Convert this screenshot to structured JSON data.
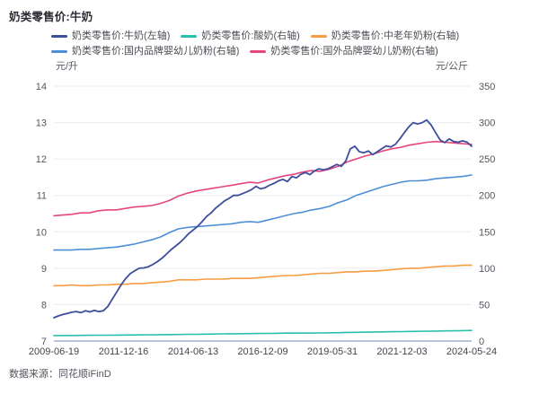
{
  "window": {
    "title": "奶类零售价:牛奶",
    "source_note": "数据来源：同花顺iFinD"
  },
  "colors": {
    "milk_line": "#3C4E9C",
    "yogurt_line": "#29BFAD",
    "senior_powder_line": "#F79C42",
    "domestic_infant_line": "#4D8FD6",
    "foreign_infant_line": "#E5467F",
    "gridline": "#e9ebf2",
    "axis_line": "#bcc6da",
    "background": "#ffffff"
  },
  "chart_data": {
    "type": "line",
    "title": "奶类零售价:牛奶",
    "grid": true,
    "legend_position": "top",
    "x_tick_labels": [
      "2009-06-19",
      "2011-12-16",
      "2014-06-13",
      "2016-12-09",
      "2019-05-31",
      "2021-12-03",
      "2024-05-24"
    ],
    "left_axis": {
      "unit": "元/升",
      "min": 7,
      "max": 14,
      "ticks": [
        14,
        13,
        12,
        11,
        10,
        9,
        8,
        7
      ]
    },
    "right_axis": {
      "unit": "元/公斤",
      "min": 0,
      "max": 350,
      "ticks": [
        350,
        300,
        250,
        200,
        150,
        100,
        50,
        0
      ]
    },
    "legend_rows": [
      [
        4,
        0,
        1
      ],
      [
        2,
        3
      ]
    ],
    "series": [
      {
        "name": "奶类零售价:酸奶(右轴)",
        "axis": "right",
        "color": "#29BFAD",
        "values": [
          7.5,
          7.6,
          7.7,
          7.8,
          7.9,
          8,
          8,
          8.1,
          8.2,
          8.4,
          8.5,
          8.6,
          8.7,
          8.9,
          9,
          9.2,
          9.3,
          9.5,
          9.6,
          9.8,
          10,
          10.1,
          10.2,
          10.4,
          10.5,
          10.6,
          10.8,
          10.9,
          11,
          11,
          11.1,
          11.3,
          11.5,
          11.8,
          12,
          12.2,
          12.4,
          12.6,
          12.8,
          13,
          13.2,
          13.3,
          13.5,
          13.7,
          13.9,
          14.1,
          14.3,
          14.5
        ]
      },
      {
        "name": "奶类零售价:中老年奶粉(右轴)",
        "axis": "right",
        "color": "#F79C42",
        "values": [
          76,
          76,
          77,
          76,
          76,
          77,
          77,
          78,
          78,
          79,
          79,
          80,
          81,
          82,
          84,
          84,
          84,
          85,
          85,
          85,
          86,
          86,
          86,
          87,
          88,
          89,
          90,
          90,
          91,
          92,
          93,
          93,
          94,
          95,
          95,
          96,
          96,
          97,
          98,
          99,
          100,
          100,
          101,
          102,
          103,
          103,
          104,
          104
        ]
      },
      {
        "name": "奶类零售价:国内品牌婴幼儿奶粉(右轴)",
        "axis": "right",
        "color": "#4D8FD6",
        "values": [
          125,
          125,
          125,
          126,
          126,
          127,
          128,
          129,
          131,
          133,
          136,
          139,
          143,
          149,
          154,
          156,
          157,
          158,
          159,
          160,
          161,
          163,
          164,
          163,
          166,
          169,
          172,
          175,
          177,
          180,
          182,
          185,
          190,
          194,
          200,
          204,
          208,
          212,
          215,
          218,
          220,
          220,
          221,
          223,
          224,
          225,
          226,
          228
        ]
      },
      {
        "name": "奶类零售价:国外品牌婴幼儿奶粉(右轴)",
        "axis": "right",
        "color": "#E5467F",
        "values": [
          172,
          173,
          174,
          176,
          176,
          179,
          180,
          180,
          182,
          184,
          185,
          186,
          189,
          193,
          199,
          203,
          206,
          208,
          210,
          212,
          214,
          216,
          218,
          217,
          221,
          224,
          227,
          229,
          232,
          234,
          233,
          236,
          240,
          246,
          250,
          254,
          257,
          261,
          264,
          266,
          269,
          271,
          273,
          274,
          273,
          272,
          271,
          270
        ]
      },
      {
        "name": "奶类零售价:牛奶(左轴)",
        "axis": "left",
        "color": "#3C4E9C",
        "values": [
          7.64,
          7.69,
          7.73,
          7.76,
          7.79,
          7.81,
          7.78,
          7.83,
          7.8,
          7.84,
          7.81,
          7.83,
          7.95,
          8.15,
          8.35,
          8.55,
          8.72,
          8.85,
          8.93,
          9.0,
          9.01,
          9.04,
          9.1,
          9.18,
          9.27,
          9.38,
          9.5,
          9.6,
          9.7,
          9.82,
          9.95,
          10.05,
          10.15,
          10.28,
          10.42,
          10.52,
          10.65,
          10.75,
          10.85,
          10.92,
          11.0,
          11.0,
          11.05,
          11.1,
          11.16,
          11.25,
          11.18,
          11.21,
          11.28,
          11.33,
          11.4,
          11.44,
          11.38,
          11.52,
          11.48,
          11.58,
          11.63,
          11.57,
          11.67,
          11.73,
          11.7,
          11.73,
          11.79,
          11.85,
          11.8,
          11.95,
          12.28,
          12.35,
          12.2,
          12.17,
          12.22,
          12.12,
          12.2,
          12.28,
          12.36,
          12.33,
          12.4,
          12.55,
          12.72,
          12.88,
          13.0,
          12.96,
          13.0,
          13.07,
          12.93,
          12.72,
          12.52,
          12.45,
          12.55,
          12.48,
          12.46,
          12.5,
          12.46,
          12.35
        ]
      }
    ]
  }
}
